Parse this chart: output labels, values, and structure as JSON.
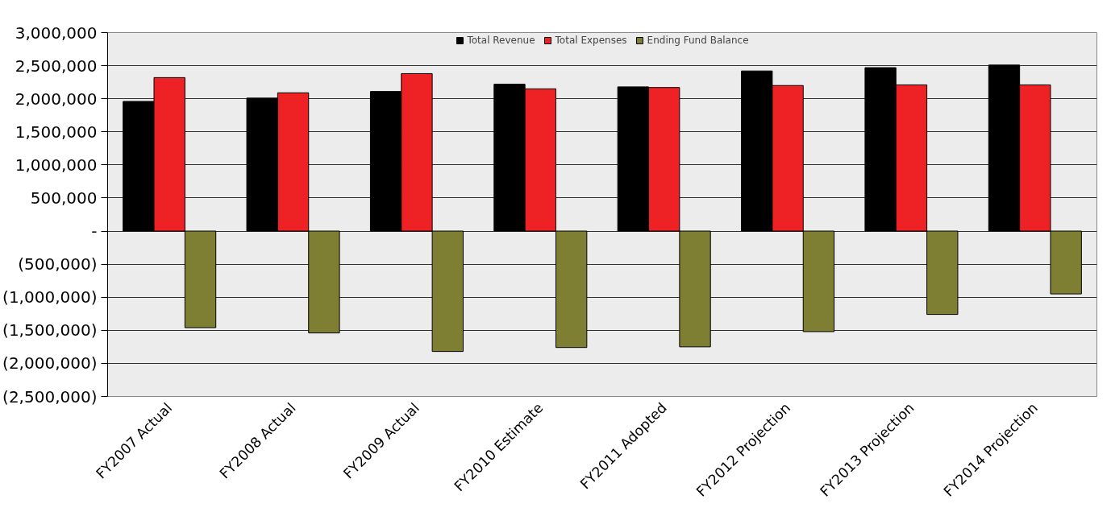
{
  "chart_data": {
    "type": "bar",
    "categories": [
      "FY2007 Actual",
      "FY2008 Actual",
      "FY2009 Actual",
      "FY2010 Estimate",
      "FY2011 Adopted",
      "FY2012 Projection",
      "FY2013 Projection",
      "FY2014 Projection"
    ],
    "series": [
      {
        "name": "Total Revenue",
        "color": "#000000",
        "values": [
          1960000,
          2010000,
          2110000,
          2220000,
          2180000,
          2420000,
          2470000,
          2510000
        ]
      },
      {
        "name": "Total Expenses",
        "color": "#ee2224",
        "values": [
          2320000,
          2090000,
          2380000,
          2150000,
          2170000,
          2200000,
          2210000,
          2210000
        ]
      },
      {
        "name": "Ending Fund Balance",
        "color": "#7f7f33",
        "values": [
          -1460000,
          -1540000,
          -1820000,
          -1760000,
          -1750000,
          -1520000,
          -1260000,
          -950000
        ]
      }
    ],
    "ylim": [
      -2500000,
      3000000
    ],
    "yticks": [
      {
        "value": -2500000,
        "label": "(2,500,000)"
      },
      {
        "value": -2000000,
        "label": "(2,000,000)"
      },
      {
        "value": -1500000,
        "label": "(1,500,000)"
      },
      {
        "value": -1000000,
        "label": "(1,000,000)"
      },
      {
        "value": -500000,
        "label": "(500,000)"
      },
      {
        "value": 0,
        "label": "-"
      },
      {
        "value": 500000,
        "label": "500,000"
      },
      {
        "value": 1000000,
        "label": "1,000,000"
      },
      {
        "value": 1500000,
        "label": "1,500,000"
      },
      {
        "value": 2000000,
        "label": "2,000,000"
      },
      {
        "value": 2500000,
        "label": "2,500,000"
      },
      {
        "value": 3000000,
        "label": "3,000,000"
      }
    ],
    "grid": "y",
    "legend": "top"
  }
}
